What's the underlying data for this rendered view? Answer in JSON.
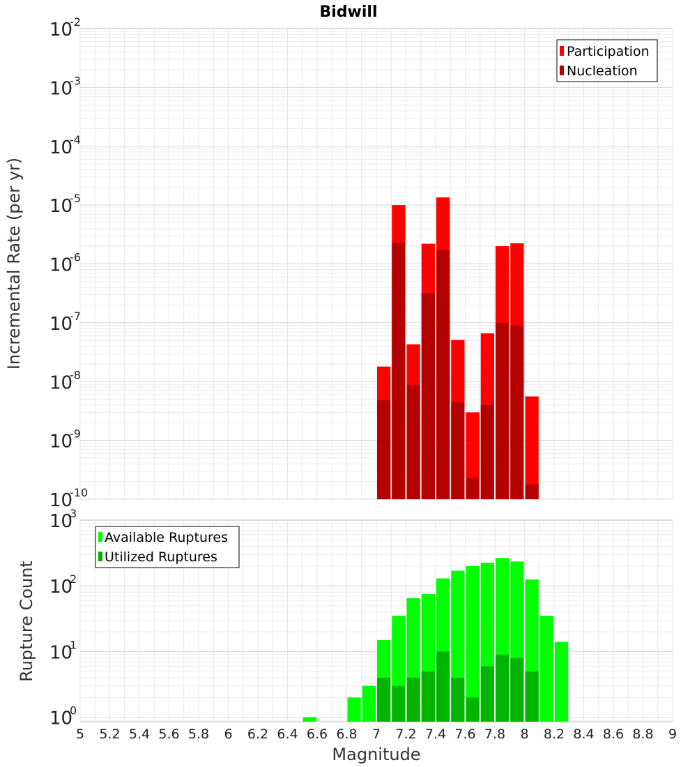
{
  "chart_data": [
    {
      "type": "bar",
      "title": "Bidwill",
      "xlabel": "",
      "ylabel": "Incremental Rate (per yr)",
      "yscale": "log",
      "ylim_exp": [
        -10,
        -2
      ],
      "xlim": [
        5,
        9
      ],
      "bar_width": 0.1,
      "legend_position": "top-right",
      "y_ticks": [
        {
          "base": "10",
          "exp": "-2"
        },
        {
          "base": "10",
          "exp": "-3"
        },
        {
          "base": "10",
          "exp": "-4"
        },
        {
          "base": "10",
          "exp": "-5"
        },
        {
          "base": "10",
          "exp": "-6"
        },
        {
          "base": "10",
          "exp": "-7"
        },
        {
          "base": "10",
          "exp": "-8"
        },
        {
          "base": "10",
          "exp": "-9"
        },
        {
          "base": "10",
          "exp": "-10"
        }
      ],
      "series": [
        {
          "name": "Participation",
          "color": "#ff0000",
          "x": [
            7.05,
            7.15,
            7.25,
            7.35,
            7.45,
            7.55,
            7.65,
            7.75,
            7.85,
            7.95,
            8.05
          ],
          "values": [
            1.8e-08,
            1e-05,
            4.3e-08,
            2.2e-06,
            1.35e-05,
            5.1e-08,
            3e-09,
            6.6e-08,
            2e-06,
            2.25e-06,
            5.6e-09
          ]
        },
        {
          "name": "Nucleation",
          "color": "#b40000",
          "x": [
            7.05,
            7.15,
            7.25,
            7.35,
            7.45,
            7.55,
            7.65,
            7.75,
            7.85,
            7.95,
            8.05
          ],
          "values": [
            4.8e-09,
            2.3e-06,
            8.8e-09,
            3.2e-07,
            1.7e-06,
            4.5e-09,
            2.3e-10,
            4e-09,
            1e-07,
            9e-08,
            1.8e-10
          ]
        }
      ]
    },
    {
      "type": "bar",
      "title": "",
      "xlabel": "Magnitude",
      "ylabel": "Rupture Count",
      "yscale": "log",
      "ylim_exp": [
        -0.067,
        3
      ],
      "xlim": [
        5,
        9
      ],
      "bar_width": 0.1,
      "legend_position": "top-left",
      "x_ticks": [
        "5",
        "5.2",
        "5.4",
        "5.6",
        "5.8",
        "6",
        "6.2",
        "6.4",
        "6.6",
        "6.8",
        "7",
        "7.2",
        "7.4",
        "7.6",
        "7.8",
        "8",
        "8.2",
        "8.4",
        "8.6",
        "8.8",
        "9"
      ],
      "y_ticks": [
        {
          "base": "10",
          "exp": "3"
        },
        {
          "base": "10",
          "exp": "2"
        },
        {
          "base": "10",
          "exp": "1"
        },
        {
          "base": "10",
          "exp": "0"
        }
      ],
      "series": [
        {
          "name": "Available Ruptures",
          "color": "#00ff00",
          "x": [
            6.55,
            6.85,
            6.95,
            7.05,
            7.15,
            7.25,
            7.35,
            7.45,
            7.55,
            7.65,
            7.75,
            7.85,
            7.95,
            8.05,
            8.15,
            8.25
          ],
          "values": [
            1,
            2,
            3,
            15,
            35,
            65,
            75,
            130,
            170,
            200,
            225,
            265,
            235,
            125,
            35,
            14
          ]
        },
        {
          "name": "Utilized Ruptures",
          "color": "#00b400",
          "x": [
            7.05,
            7.15,
            7.25,
            7.35,
            7.45,
            7.55,
            7.65,
            7.75,
            7.85,
            7.95,
            8.05
          ],
          "values": [
            4,
            3,
            4,
            5,
            10,
            4,
            2,
            6,
            9,
            8,
            5
          ]
        }
      ]
    }
  ]
}
